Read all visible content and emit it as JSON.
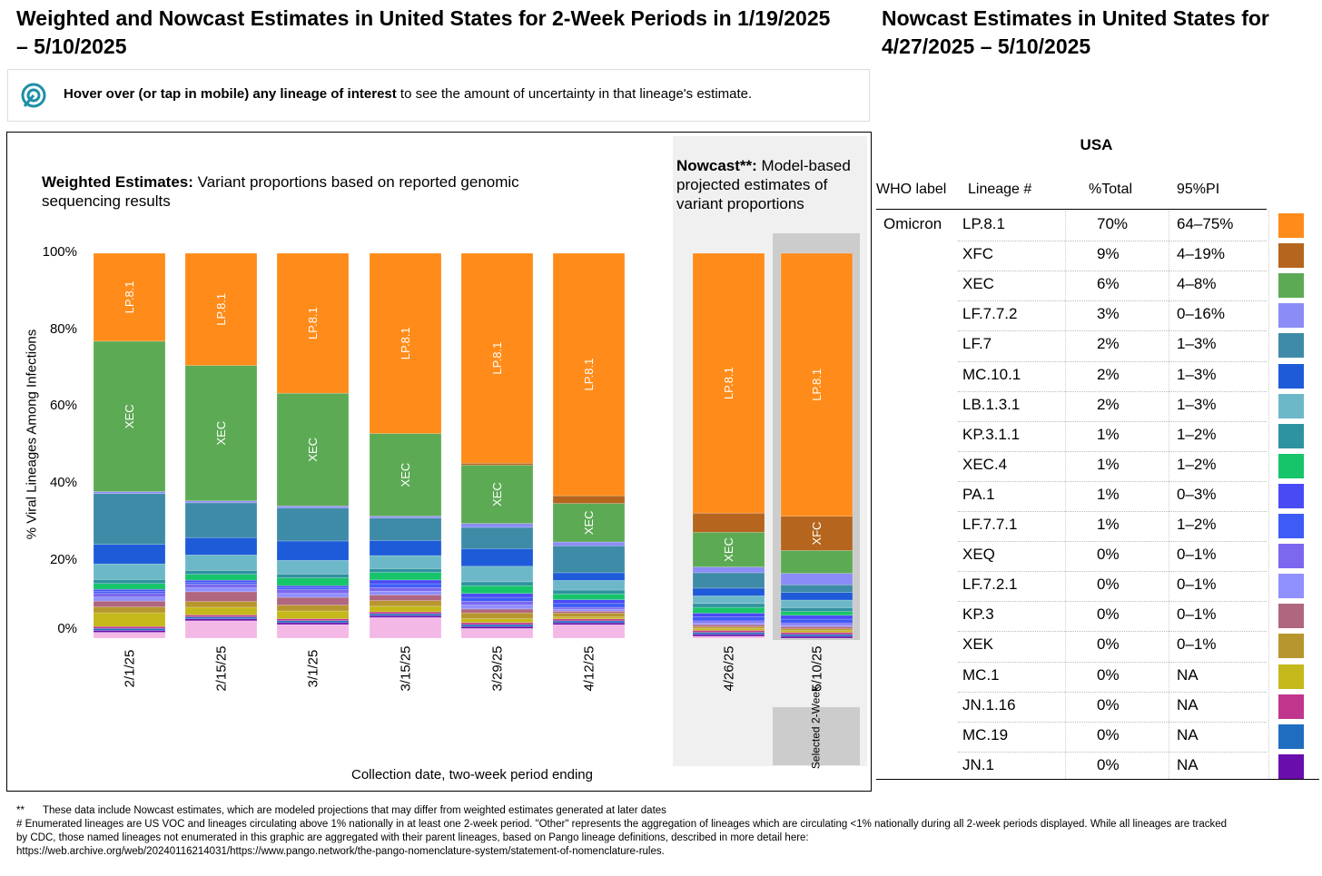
{
  "left_title": "Weighted and Nowcast Estimates in United States for 2-Week Periods in 1/19/2025 – 5/10/2025",
  "right_title": "Nowcast Estimates in United States for 4/27/2025 – 5/10/2025",
  "hover_bold": "Hover over (or tap in mobile) any lineage of interest",
  "hover_rest": " to see the amount of uncertainty in that lineage's estimate.",
  "weighted_heading_bold": "Weighted Estimates:",
  "weighted_heading_rest": " Variant proportions based on reported genomic sequencing results",
  "nowcast_heading_bold": "Nowcast**:",
  "nowcast_heading_rest": " Model-based projected estimates of variant proportions",
  "selected_label": "Selected 2-Week",
  "chart_data": {
    "type": "bar",
    "stacked": true,
    "ylabel": "% Viral Lineages Among Infections",
    "xlabel": "Collection date, two-week period ending",
    "yticks": [
      "100%",
      "80%",
      "60%",
      "40%",
      "20%",
      "0%"
    ],
    "ylim": [
      0,
      100
    ],
    "categories": [
      "2/1/25",
      "2/15/25",
      "3/1/25",
      "3/15/25",
      "3/29/25",
      "4/12/25",
      "4/26/25",
      "5/10/25"
    ],
    "weighted_categories": [
      "2/1/25",
      "2/15/25",
      "3/1/25",
      "3/15/25",
      "3/29/25",
      "4/12/25"
    ],
    "nowcast_categories": [
      "4/26/25",
      "5/10/25"
    ],
    "series": [
      {
        "name": "LP.8.1",
        "color": "#FF8C1A",
        "values": [
          22.5,
          29,
          36,
          48,
          54,
          63,
          67.5,
          69
        ]
      },
      {
        "name": "XFC",
        "color": "#B5651D",
        "values": [
          0,
          0,
          0,
          0,
          0.5,
          2,
          5,
          9
        ]
      },
      {
        "name": "XEC",
        "color": "#5DAA55",
        "values": [
          38.5,
          35,
          29,
          22,
          15,
          10,
          9,
          6
        ]
      },
      {
        "name": "LF.7.7.2",
        "color": "#8C8CF7",
        "values": [
          0.5,
          0.5,
          0.5,
          0.5,
          1,
          1,
          1.5,
          3
        ]
      },
      {
        "name": "LF.7",
        "color": "#3E8BA8",
        "values": [
          13,
          9,
          8.5,
          6,
          5.5,
          7,
          4,
          2
        ]
      },
      {
        "name": "MC.10.1",
        "color": "#1E5BD8",
        "values": [
          5,
          4.5,
          5,
          4,
          4.5,
          2,
          2,
          2
        ]
      },
      {
        "name": "LB.1.3.1",
        "color": "#6DB8C8",
        "values": [
          4,
          4,
          3.5,
          3.5,
          4,
          2.5,
          2,
          2
        ]
      },
      {
        "name": "KP.3.1.1",
        "color": "#2E93A0",
        "values": [
          1,
          1,
          1,
          1,
          1,
          1,
          1,
          1
        ]
      },
      {
        "name": "XEC.4",
        "color": "#16C46A",
        "values": [
          1.5,
          1.5,
          2,
          2,
          2,
          1.5,
          1.5,
          1
        ]
      },
      {
        "name": "PA.1",
        "color": "#4A4AF5",
        "values": [
          0.5,
          0.5,
          0.5,
          1,
          1,
          1,
          1,
          1
        ]
      },
      {
        "name": "LF.7.7.1",
        "color": "#3D5BF5",
        "values": [
          0.5,
          0.5,
          0.5,
          1,
          1,
          1,
          1,
          1
        ]
      },
      {
        "name": "XEQ",
        "color": "#7B68EE",
        "values": [
          1,
          1,
          1,
          1,
          1,
          0.5,
          0.5,
          0.5
        ]
      },
      {
        "name": "LF.7.2.1",
        "color": "#9090FF",
        "values": [
          1,
          1,
          1,
          1,
          1,
          0.5,
          0.5,
          0.5
        ]
      },
      {
        "name": "KP.3",
        "color": "#B0667F",
        "values": [
          1.5,
          2.5,
          2,
          1.5,
          1,
          0.5,
          0.5,
          0.5
        ]
      },
      {
        "name": "XEK",
        "color": "#B8962E",
        "values": [
          1.5,
          1.5,
          1.5,
          1.5,
          1.5,
          1,
          0.5,
          0.5
        ]
      },
      {
        "name": "MC.1",
        "color": "#C4B81A",
        "values": [
          3.5,
          2,
          2,
          1.5,
          1,
          0.5,
          0.5,
          0.5
        ]
      },
      {
        "name": "JN.1.16",
        "color": "#C0368C",
        "values": [
          0.5,
          0.5,
          0.5,
          0.5,
          0.5,
          0.5,
          0.5,
          0.5
        ]
      },
      {
        "name": "MC.19",
        "color": "#1F6DC0",
        "values": [
          0.5,
          0.5,
          0.5,
          0.5,
          0.5,
          0.5,
          0.5,
          0.5
        ]
      },
      {
        "name": "JN.1",
        "color": "#6A0DAD",
        "values": [
          0.5,
          0.5,
          0.5,
          0.5,
          0.5,
          0.5,
          0.5,
          0.5
        ]
      },
      {
        "name": "Other",
        "color": "#F4B8E6",
        "values": [
          1.5,
          4.5,
          3.5,
          5.5,
          2.5,
          3.5,
          0.5,
          0
        ]
      }
    ],
    "bar_labels": [
      {
        "series": "LP.8.1",
        "bars": [
          0,
          1,
          2,
          3,
          4,
          5,
          6,
          7
        ]
      },
      {
        "series": "XEC",
        "bars": [
          0,
          1,
          2,
          3,
          4,
          5,
          6
        ]
      },
      {
        "series": "XFC",
        "bars": [
          7
        ]
      }
    ]
  },
  "table": {
    "header_region": "USA",
    "columns": [
      "WHO label",
      "Lineage #",
      "%Total",
      "95%PI"
    ],
    "who_label": "Omicron",
    "rows": [
      {
        "lineage": "LP.8.1",
        "total": "70%",
        "pi": "64–75%",
        "color": "#FF8C1A"
      },
      {
        "lineage": "XFC",
        "total": "9%",
        "pi": "4–19%",
        "color": "#B5651D"
      },
      {
        "lineage": "XEC",
        "total": "6%",
        "pi": "4–8%",
        "color": "#5DAA55"
      },
      {
        "lineage": "LF.7.7.2",
        "total": "3%",
        "pi": "0–16%",
        "color": "#8C8CF7"
      },
      {
        "lineage": "LF.7",
        "total": "2%",
        "pi": "1–3%",
        "color": "#3E8BA8"
      },
      {
        "lineage": "MC.10.1",
        "total": "2%",
        "pi": "1–3%",
        "color": "#1E5BD8"
      },
      {
        "lineage": "LB.1.3.1",
        "total": "2%",
        "pi": "1–3%",
        "color": "#6DB8C8"
      },
      {
        "lineage": "KP.3.1.1",
        "total": "1%",
        "pi": "1–2%",
        "color": "#2E93A0"
      },
      {
        "lineage": "XEC.4",
        "total": "1%",
        "pi": "1–2%",
        "color": "#16C46A"
      },
      {
        "lineage": "PA.1",
        "total": "1%",
        "pi": "0–3%",
        "color": "#4A4AF5"
      },
      {
        "lineage": "LF.7.7.1",
        "total": "1%",
        "pi": "1–2%",
        "color": "#3D5BF5"
      },
      {
        "lineage": "XEQ",
        "total": "0%",
        "pi": "0–1%",
        "color": "#7B68EE"
      },
      {
        "lineage": "LF.7.2.1",
        "total": "0%",
        "pi": "0–1%",
        "color": "#9090FF"
      },
      {
        "lineage": "KP.3",
        "total": "0%",
        "pi": "0–1%",
        "color": "#B0667F"
      },
      {
        "lineage": "XEK",
        "total": "0%",
        "pi": "0–1%",
        "color": "#B8962E"
      },
      {
        "lineage": "MC.1",
        "total": "0%",
        "pi": "NA",
        "color": "#C4B81A"
      },
      {
        "lineage": "JN.1.16",
        "total": "0%",
        "pi": "NA",
        "color": "#C0368C"
      },
      {
        "lineage": "MC.19",
        "total": "0%",
        "pi": "NA",
        "color": "#1F6DC0"
      },
      {
        "lineage": "JN.1",
        "total": "0%",
        "pi": "NA",
        "color": "#6A0DAD"
      }
    ]
  },
  "footnotes": {
    "line1_mark": "**",
    "line1": "These data include Nowcast estimates, which are modeled projections that may differ from weighted estimates generated at later dates",
    "line2": "# Enumerated lineages are US VOC and lineages circulating above 1% nationally in at least one 2-week period. \"Other\" represents the aggregation of lineages which are circulating <1% nationally during all 2-week periods displayed.  While all lineages are tracked",
    "line3": "by CDC, those named lineages not enumerated in this graphic are aggregated with their parent lineages, based on Pango lineage definitions, described in more detail here:",
    "line4": "https://web.archive.org/web/20240116214031/https://www.pango.network/the-pango-nomenclature-system/statement-of-nomenclature-rules."
  },
  "colors": {
    "nowcast_panel_bg": "#f0f0f0",
    "selected_panel_bg": "#cccccc",
    "hover_icon": "#1e8fa8"
  }
}
